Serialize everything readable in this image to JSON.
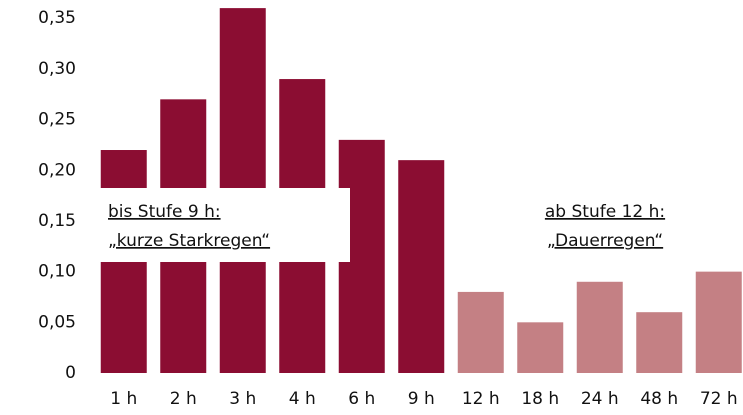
{
  "chart_data": {
    "type": "bar",
    "categories": [
      "1 h",
      "2 h",
      "3 h",
      "4 h",
      "6 h",
      "9 h",
      "12 h",
      "18 h",
      "24 h",
      "48 h",
      "72 h"
    ],
    "values": [
      0.22,
      0.27,
      0.36,
      0.29,
      0.23,
      0.21,
      0.08,
      0.05,
      0.09,
      0.06,
      0.1
    ],
    "colors": [
      "#8b0d32",
      "#8b0d32",
      "#8b0d32",
      "#8b0d32",
      "#8b0d32",
      "#8b0d32",
      "#c48084",
      "#c48084",
      "#c48084",
      "#c48084",
      "#c48084"
    ],
    "ylim": [
      0,
      0.368
    ],
    "yticks": [
      0,
      {
        "value": 0.05,
        "label": "0,05"
      },
      {
        "value": 0.1,
        "label": "0,10"
      },
      {
        "value": 0.15,
        "label": "0,15"
      },
      {
        "value": 0.2,
        "label": "0,20"
      },
      {
        "value": 0.25,
        "label": "0,25"
      },
      {
        "value": 0.3,
        "label": "0,30"
      },
      {
        "value": 0.35,
        "label": "0,35"
      }
    ],
    "grid": false,
    "annotations": [
      {
        "lines": [
          "bis Stufe 9 h:",
          "„kurze Starkregen“"
        ]
      },
      {
        "lines": [
          "ab Stufe 12 h:",
          "„Dauerregen“"
        ]
      }
    ]
  }
}
